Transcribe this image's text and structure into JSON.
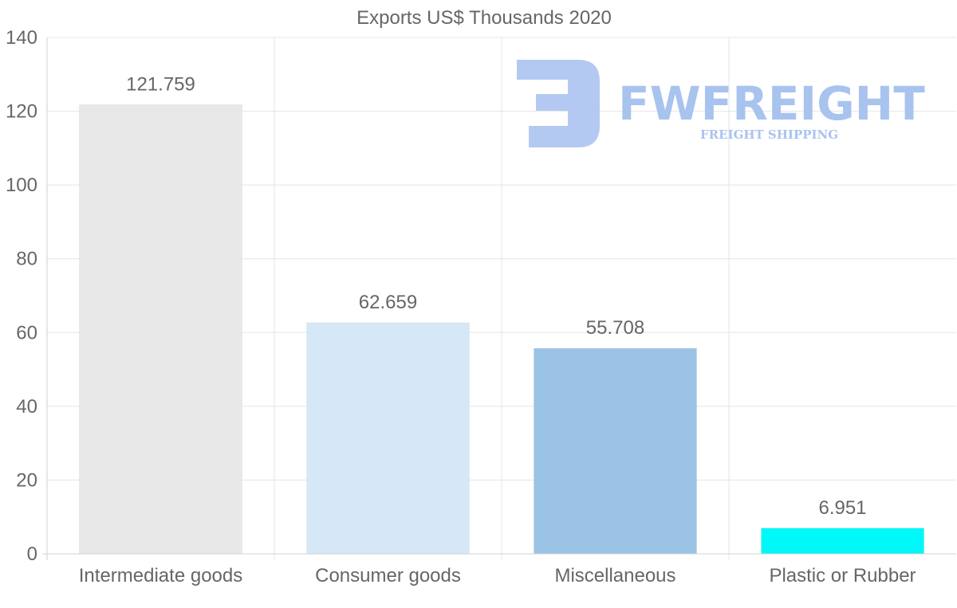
{
  "chart_data": {
    "type": "bar",
    "title": "Exports US$ Thousands 2020",
    "categories": [
      "Intermediate goods",
      "Consumer goods",
      "Miscellaneous",
      "Plastic or Rubber"
    ],
    "values": [
      121.759,
      62.659,
      55.708,
      6.951
    ],
    "value_labels": [
      "121.759",
      "62.659",
      "55.708",
      "6.951"
    ],
    "colors": [
      "#e8e8e8",
      "#d6e8f8",
      "#9bc3e6",
      "#00f8f8"
    ],
    "ylim": [
      0,
      140
    ],
    "yticks": [
      0,
      20,
      40,
      60,
      80,
      100,
      120,
      140
    ],
    "xlabel": "",
    "ylabel": "",
    "grid": true,
    "legend": "none"
  },
  "watermark": {
    "brand": "FWFREIGHT",
    "tagline": "FREIGHT SHIPPING",
    "color": "#a9c3ef"
  }
}
